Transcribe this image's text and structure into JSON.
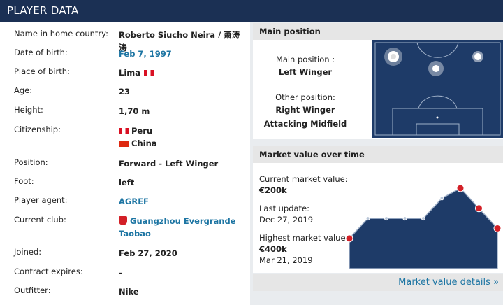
{
  "header": {
    "title": "PLAYER DATA"
  },
  "player_data": {
    "rows": [
      {
        "label": "Name in home country:",
        "values": [
          "Roberto Siucho Neira / 萧涛涛"
        ]
      },
      {
        "label": "Date of birth:",
        "values": [
          "Feb 7, 1997"
        ],
        "link": true
      },
      {
        "label": "Place of birth:",
        "values": [
          "Lima"
        ],
        "flags": [
          "peru"
        ]
      },
      {
        "label": "Age:",
        "values": [
          "23"
        ]
      },
      {
        "label": "Height:",
        "values": [
          "1,70 m"
        ]
      },
      {
        "label": "Citizenship:",
        "values": [
          "Peru",
          "China"
        ],
        "flags": [
          "peru",
          "china"
        ]
      },
      {
        "label": "Position:",
        "values": [
          "Forward - Left Winger"
        ]
      },
      {
        "label": "Foot:",
        "values": [
          "left"
        ]
      },
      {
        "label": "Player agent:",
        "values": [
          "AGREF"
        ],
        "link": true
      },
      {
        "label": "Current club:",
        "values": [
          "Guangzhou Evergrande Taobao"
        ],
        "link": true,
        "crest": true
      },
      {
        "label": "Joined:",
        "values": [
          "Feb 27, 2020"
        ]
      },
      {
        "label": "Contract expires:",
        "values": [
          "-"
        ]
      },
      {
        "label": "Outfitter:",
        "values": [
          "Nike"
        ]
      }
    ]
  },
  "main_position": {
    "title": "Main position",
    "main_label": "Main position :",
    "main": "Left Winger",
    "other_label": "Other position:",
    "other": [
      "Right Winger",
      "Attacking Midfield"
    ]
  },
  "market_value": {
    "title": "Market value over time",
    "current_label": "Current market value:",
    "current": "€200k",
    "update_label": "Last update:",
    "update": "Dec 27, 2019",
    "highest_label": "Highest market value:",
    "highest": "€400k",
    "highest_date": "Mar 21, 2019",
    "chart": {
      "values": [
        150,
        250,
        250,
        250,
        250,
        350,
        400,
        300,
        200
      ]
    },
    "link": "Market value details »"
  }
}
